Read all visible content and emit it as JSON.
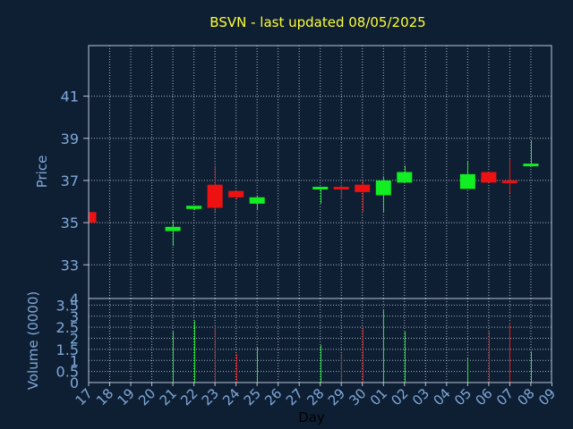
{
  "chart_data": {
    "type": "candlestick",
    "title": "BSVN - last updated 08/05/2025",
    "xlabel": "Day",
    "colors": {
      "background": "#0f1f33",
      "plot_border": "#b9c4d6",
      "grid": "#cfd8e6",
      "title": "#ffff33",
      "axis_text": "#7fa8d9",
      "up": "#11ee22",
      "down": "#ee1111"
    },
    "price_panel": {
      "ylabel": "Price",
      "ylim": [
        31.4,
        43.4
      ],
      "yticks": [
        "33",
        "35",
        "37",
        "39",
        "41"
      ],
      "grid": true
    },
    "volume_panel": {
      "ylabel": "Volume (0000)",
      "ylim": [
        0,
        3.8
      ],
      "yticks": [
        "0",
        "0.5",
        "1",
        "1.5",
        "2",
        "2.5",
        "3",
        "3.5",
        "4"
      ],
      "grid": true
    },
    "x_ticks": [
      "17",
      "18",
      "19",
      "20",
      "21",
      "22",
      "23",
      "24",
      "25",
      "26",
      "27",
      "28",
      "29",
      "30",
      "01",
      "02",
      "03",
      "04",
      "05",
      "06",
      "07",
      "08",
      "09"
    ],
    "candles": [
      {
        "day": "17",
        "open": 35.5,
        "close": 35.0,
        "high": 35.5,
        "low": 35.0,
        "volume": 0
      },
      {
        "day": "21",
        "open": 34.6,
        "close": 34.8,
        "high": 35.1,
        "low": 33.9,
        "volume": 2.3
      },
      {
        "day": "22",
        "open": 35.65,
        "close": 35.8,
        "high": 35.8,
        "low": 35.6,
        "volume": 2.8
      },
      {
        "day": "23",
        "open": 36.8,
        "close": 35.7,
        "high": 37.7,
        "low": 35.5,
        "volume": 2.5
      },
      {
        "day": "24",
        "open": 36.5,
        "close": 36.2,
        "high": 36.5,
        "low": 36.1,
        "volume": 1.3
      },
      {
        "day": "25",
        "open": 35.9,
        "close": 36.2,
        "high": 36.3,
        "low": 35.6,
        "volume": 1.6
      },
      {
        "day": "28",
        "open": 36.6,
        "close": 36.7,
        "high": 36.7,
        "low": 35.9,
        "volume": 1.7
      },
      {
        "day": "29",
        "open": 36.7,
        "close": 36.65,
        "high": 36.8,
        "low": 36.1,
        "volume": 1.3
      },
      {
        "day": "30",
        "open": 36.8,
        "close": 36.45,
        "high": 37.0,
        "low": 35.5,
        "volume": 2.5
      },
      {
        "day": "01",
        "open": 36.3,
        "close": 37.0,
        "high": 37.2,
        "low": 35.5,
        "volume": 3.3
      },
      {
        "day": "02",
        "open": 36.9,
        "close": 37.4,
        "high": 37.7,
        "low": 36.9,
        "volume": 2.3
      },
      {
        "day": "05",
        "open": 36.6,
        "close": 37.3,
        "high": 37.9,
        "low": 36.6,
        "volume": 1.1
      },
      {
        "day": "06",
        "open": 37.4,
        "close": 36.9,
        "high": 37.4,
        "low": 36.9,
        "volume": 2.3
      },
      {
        "day": "07",
        "open": 37.0,
        "close": 36.95,
        "high": 38.0,
        "low": 36.4,
        "volume": 2.7
      },
      {
        "day": "08",
        "open": 37.7,
        "close": 37.8,
        "high": 38.9,
        "low": 37.7,
        "volume": 1.4
      }
    ]
  }
}
